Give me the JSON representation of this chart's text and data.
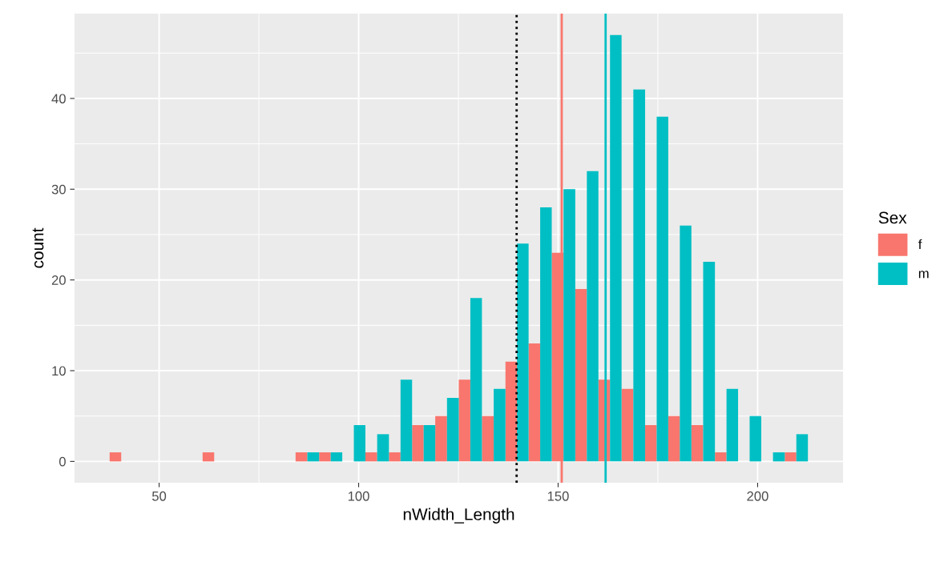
{
  "chart_data": {
    "type": "histogram",
    "xlabel": "nWidth_Length",
    "ylabel": "count",
    "legend_title": "Sex",
    "bins": [
      37.6,
      43.4,
      49.2,
      55.1,
      60.9,
      66.7,
      72.6,
      78.4,
      84.2,
      90.1,
      95.9,
      101.7,
      107.6,
      113.4,
      119.2,
      125.1,
      130.9,
      136.8,
      142.6,
      148.4,
      154.3,
      160.1,
      165.9,
      171.8,
      177.6,
      183.4,
      189.3,
      195.1,
      200.9,
      206.8,
      212.6
    ],
    "series": [
      {
        "name": "f",
        "color": "#f8766d",
        "values": [
          1,
          0,
          0,
          0,
          1,
          0,
          0,
          0,
          1,
          1,
          0,
          1,
          1,
          4,
          5,
          9,
          5,
          11,
          13,
          23,
          19,
          9,
          8,
          4,
          5,
          4,
          1,
          0,
          0,
          1
        ]
      },
      {
        "name": "m",
        "color": "#00bfc4",
        "values": [
          0,
          0,
          0,
          0,
          0,
          0,
          0,
          0,
          1,
          1,
          4,
          3,
          9,
          4,
          7,
          18,
          8,
          24,
          28,
          30,
          32,
          47,
          41,
          38,
          26,
          22,
          8,
          5,
          1,
          3
        ]
      }
    ],
    "ref_lines": [
      {
        "axis": "x",
        "value": 139.6,
        "color": "#000000",
        "line_style": "dotted"
      },
      {
        "axis": "x",
        "value": 150.9,
        "color": "#f8766d",
        "line_style": "solid"
      },
      {
        "axis": "x",
        "value": 161.9,
        "color": "#00bfc4",
        "line_style": "solid"
      }
    ],
    "xlim": [
      28.8,
      221.4
    ],
    "xticks": [
      50,
      100,
      150,
      200
    ],
    "ylim": [
      -2.35,
      49.35
    ],
    "yticks": [
      0,
      10,
      20,
      30,
      40
    ],
    "grid": true,
    "legend": "right"
  }
}
